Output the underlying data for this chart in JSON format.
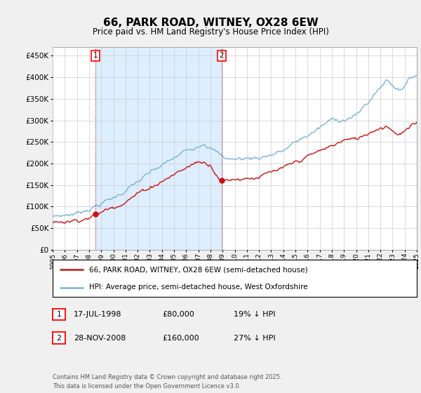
{
  "title": "66, PARK ROAD, WITNEY, OX28 6EW",
  "subtitle": "Price paid vs. HM Land Registry's House Price Index (HPI)",
  "legend_line1": "66, PARK ROAD, WITNEY, OX28 6EW (semi-detached house)",
  "legend_line2": "HPI: Average price, semi-detached house, West Oxfordshire",
  "footer": "Contains HM Land Registry data © Crown copyright and database right 2025.\nThis data is licensed under the Open Government Licence v3.0.",
  "transaction1_date": "17-JUL-1998",
  "transaction1_price": "£80,000",
  "transaction1_hpi": "19% ↓ HPI",
  "transaction1_year": 1998.54,
  "transaction1_price_val": 80000,
  "transaction2_date": "28-NOV-2008",
  "transaction2_price": "£160,000",
  "transaction2_hpi": "27% ↓ HPI",
  "transaction2_year": 2008.92,
  "transaction2_price_val": 160000,
  "hpi_color": "#7ab4d8",
  "price_color": "#cc1111",
  "vline_color": "#cc1111",
  "shade_color": "#ddeeff",
  "grid_color": "#cccccc",
  "background_color": "#f0f0f0",
  "plot_background": "#ffffff",
  "ylim": [
    0,
    470000
  ],
  "yticks": [
    0,
    50000,
    100000,
    150000,
    200000,
    250000,
    300000,
    350000,
    400000,
    450000
  ],
  "year_start": 1995,
  "year_end": 2025
}
